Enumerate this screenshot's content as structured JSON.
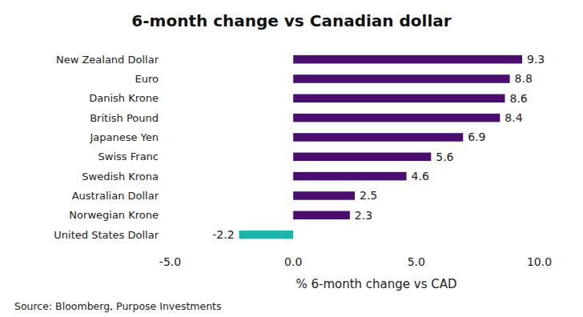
{
  "chart_data": {
    "type": "bar",
    "orientation": "horizontal",
    "title": "6-month change vs Canadian dollar",
    "categories": [
      "New Zealand Dollar",
      "Euro",
      "Danish Krone",
      "British Pound",
      "Japanese Yen",
      "Swiss Franc",
      "Swedish Krona",
      "Australian Dollar",
      "Norwegian Krone",
      "United States Dollar"
    ],
    "values": [
      9.3,
      8.8,
      8.6,
      8.4,
      6.9,
      5.6,
      4.6,
      2.5,
      2.3,
      -2.2
    ],
    "colors": [
      "#4a0f6e",
      "#4a0f6e",
      "#4a0f6e",
      "#4a0f6e",
      "#4a0f6e",
      "#4a0f6e",
      "#4a0f6e",
      "#4a0f6e",
      "#4a0f6e",
      "#1cb5a9"
    ],
    "xlim": [
      -5,
      10
    ],
    "xticks": [
      {
        "value": -5,
        "label": "-5.0"
      },
      {
        "value": 0,
        "label": "0.0"
      },
      {
        "value": 5,
        "label": "5.0"
      },
      {
        "value": 10,
        "label": "10.0"
      }
    ],
    "x_label": "% 6-month change vs CAD",
    "source": "Source: Bloomberg, Purpose Investments",
    "data_labels": true,
    "grid": false
  }
}
